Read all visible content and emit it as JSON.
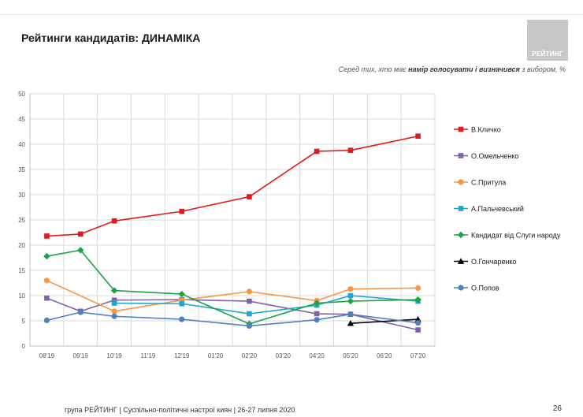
{
  "header": {
    "title": "Рейтинги кандидатів: ДИНАМІКА",
    "logo_text": "РЕЙТИНГ",
    "subtitle_pre": "Серед тих, хто має ",
    "subtitle_bold": "намір голосувати і визначився",
    "subtitle_post": " з вибором, %"
  },
  "footer": {
    "text": "група РЕЙТИНГ  | Суспільно-політичні настрої киян | 26-27 липня 2020",
    "page": "26"
  },
  "colors": {
    "grid": "#d9d9d9",
    "axis": "#bfbfbf"
  },
  "chart_data": {
    "type": "line",
    "categories": [
      "08'19",
      "09'19",
      "10'19",
      "11'19",
      "12'19",
      "01'20",
      "02'20",
      "03'20",
      "04'20",
      "05'20",
      "06'20",
      "07'20"
    ],
    "ylim": [
      0,
      50
    ],
    "yticks": [
      0,
      5,
      10,
      15,
      20,
      25,
      30,
      35,
      40,
      45,
      50
    ],
    "grid": true,
    "legend_position": "right",
    "series": [
      {
        "name": "В.Кличко",
        "color": "#e31a1c",
        "marker": "square",
        "values": [
          21.8,
          22.2,
          24.8,
          null,
          26.7,
          null,
          29.6,
          null,
          38.6,
          38.8,
          null,
          41.6
        ]
      },
      {
        "name": "О.Омельченко",
        "color": "#8064a2",
        "marker": "square",
        "values": [
          9.5,
          6.9,
          9.1,
          null,
          9.2,
          null,
          8.9,
          null,
          6.4,
          6.3,
          null,
          3.2
        ]
      },
      {
        "name": "С.Притула",
        "color": "#f79646",
        "marker": "circle",
        "values": [
          13.0,
          null,
          6.9,
          null,
          9.1,
          null,
          10.8,
          null,
          9.0,
          11.3,
          null,
          11.5
        ]
      },
      {
        "name": "А.Пальчевський",
        "color": "#1fa6cf",
        "marker": "square",
        "values": [
          null,
          null,
          8.5,
          null,
          8.4,
          null,
          6.4,
          null,
          8.1,
          10.0,
          null,
          8.9
        ]
      },
      {
        "name": "Кандидат від Слуги народу",
        "color": "#1aa34a",
        "marker": "diamond",
        "values": [
          17.8,
          19.0,
          11.0,
          null,
          10.3,
          null,
          4.4,
          null,
          8.5,
          8.9,
          null,
          9.2
        ]
      },
      {
        "name": "О.Гончаренко",
        "color": "#000000",
        "marker": "triangle",
        "values": [
          null,
          null,
          null,
          null,
          null,
          null,
          null,
          null,
          null,
          4.5,
          null,
          5.3
        ]
      },
      {
        "name": "О.Попов",
        "color": "#4f81bd",
        "marker": "circle",
        "values": [
          5.1,
          6.7,
          5.9,
          null,
          5.3,
          null,
          4.0,
          null,
          5.2,
          6.3,
          null,
          4.6
        ]
      }
    ]
  }
}
